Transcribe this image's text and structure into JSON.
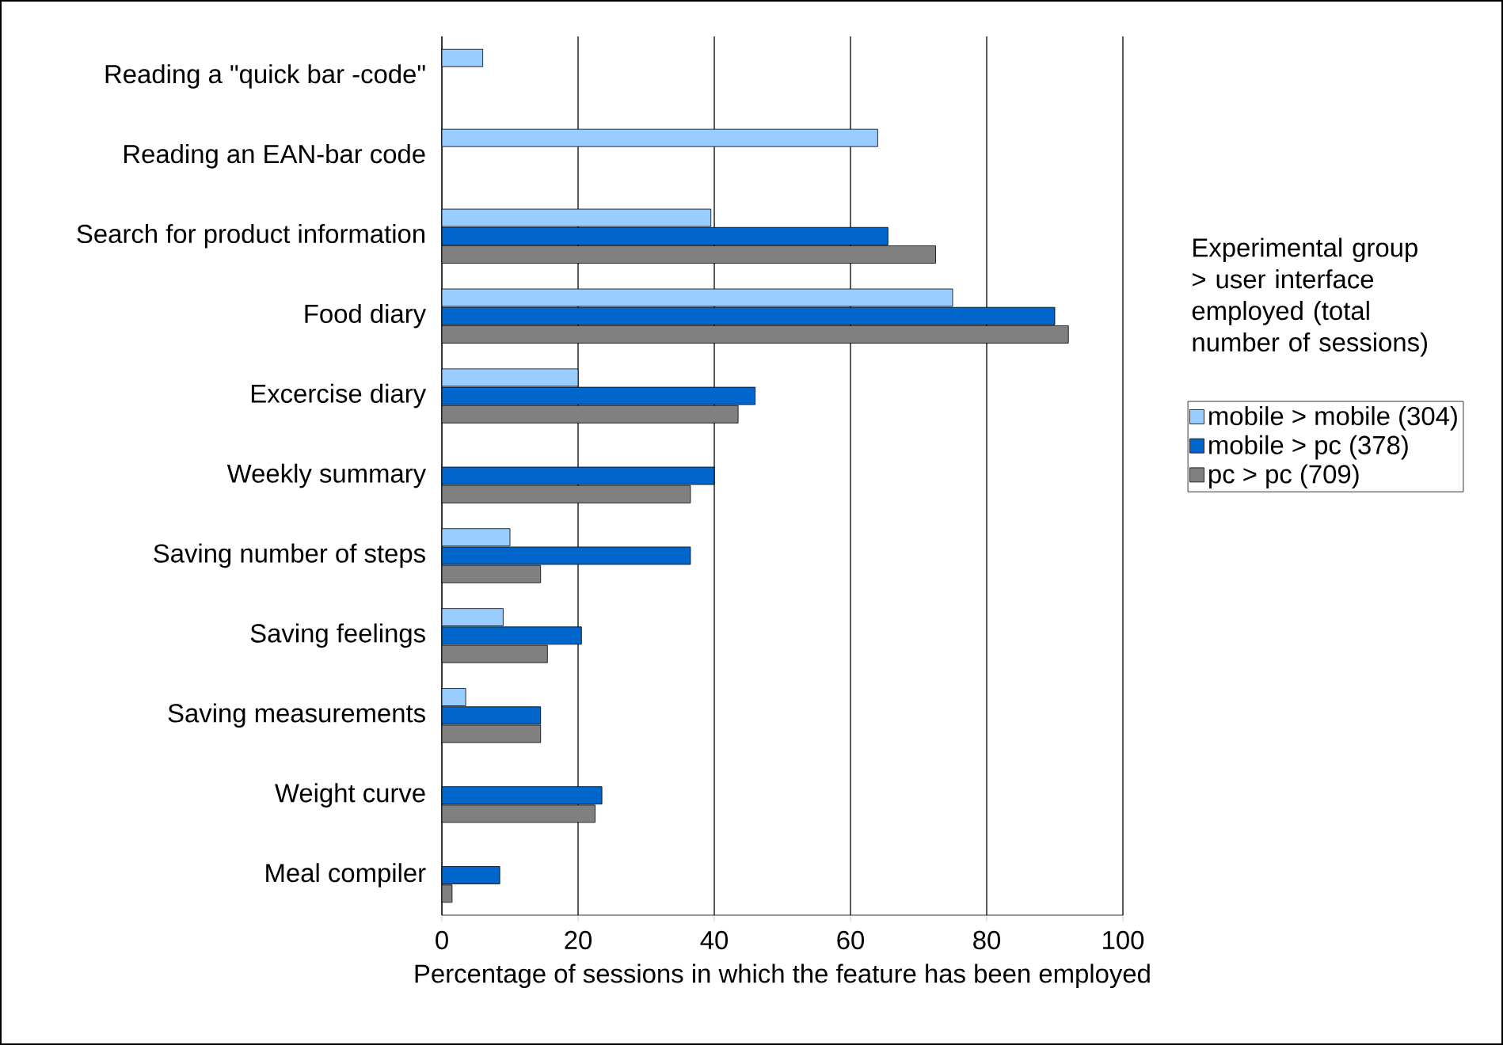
{
  "chart_data": {
    "type": "bar",
    "orientation": "horizontal",
    "categories": [
      "Reading a \"quick bar -code\"",
      "Reading an  EAN-bar code",
      "Search for product information",
      "Food diary",
      "Excercise diary",
      "Weekly summary",
      "Saving number of steps",
      "Saving feelings",
      "Saving measurements",
      "Weight curve",
      "Meal compiler"
    ],
    "series": [
      {
        "name": "mobile > mobile (304)",
        "color": "#99ccff",
        "values": [
          6,
          64,
          39.5,
          75,
          20,
          null,
          10,
          9,
          3.5,
          null,
          null
        ]
      },
      {
        "name": "mobile > pc (378)",
        "color": "#0066cc",
        "values": [
          null,
          null,
          65.5,
          90,
          46,
          40,
          36.5,
          20.5,
          14.5,
          23.5,
          8.5
        ]
      },
      {
        "name": "pc > pc (709)",
        "color": "#808080",
        "values": [
          null,
          null,
          72.5,
          92,
          43.5,
          36.5,
          14.5,
          15.5,
          14.5,
          22.5,
          1.5
        ]
      }
    ],
    "xlim": [
      0,
      100
    ],
    "xticks": [
      0,
      20,
      40,
      60,
      80,
      100
    ],
    "xlabel": "Percentage of sessions in which the feature has been employed",
    "legend_title": "Experimental group > user interface employed (total number of sessions)",
    "legend": "right",
    "grid": "x"
  }
}
